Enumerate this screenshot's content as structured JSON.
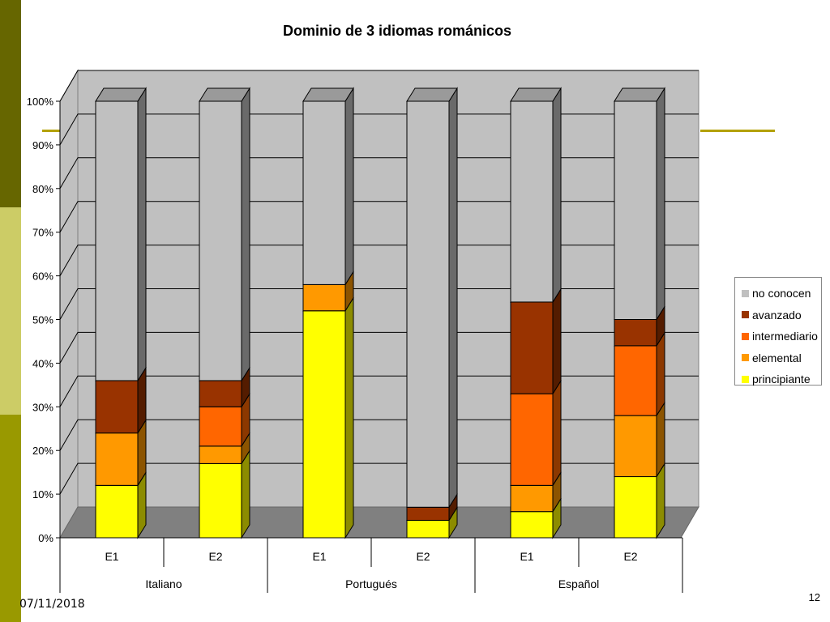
{
  "slide": {
    "date": "07/11/2018",
    "page_number": "12",
    "sidebar_colors": [
      "#666600",
      "#cccc66",
      "#999900"
    ],
    "accent_line_color": "#b3a100"
  },
  "chart_data": {
    "type": "bar",
    "stacked": "percent",
    "title": "Dominio de 3 idiomas románicos",
    "categories": [
      "E1",
      "E2",
      "E1",
      "E2",
      "E1",
      "E2"
    ],
    "groups": [
      {
        "label": "Italiano",
        "categories": [
          "E1",
          "E2"
        ]
      },
      {
        "label": "Portugués",
        "categories": [
          "E1",
          "E2"
        ]
      },
      {
        "label": "Español",
        "categories": [
          "E1",
          "E2"
        ]
      }
    ],
    "ylim": [
      0,
      100
    ],
    "y_ticks": [
      "0%",
      "10%",
      "20%",
      "30%",
      "40%",
      "50%",
      "60%",
      "70%",
      "80%",
      "90%",
      "100%"
    ],
    "grid": true,
    "legend_position": "right",
    "series": [
      {
        "name": "principiante",
        "color": "#ffff00",
        "values": [
          12,
          17,
          52,
          4,
          6,
          14
        ]
      },
      {
        "name": "elemental",
        "color": "#ff9900",
        "values": [
          12,
          4,
          6,
          0,
          6,
          14
        ]
      },
      {
        "name": "intermediario",
        "color": "#ff6600",
        "values": [
          0,
          9,
          0,
          0,
          21,
          16
        ]
      },
      {
        "name": "avanzado",
        "color": "#993300",
        "values": [
          12,
          6,
          0,
          3,
          21,
          6
        ]
      },
      {
        "name": "no conocen",
        "color": "#c0c0c0",
        "values": [
          64,
          64,
          42,
          93,
          46,
          50
        ]
      }
    ]
  }
}
